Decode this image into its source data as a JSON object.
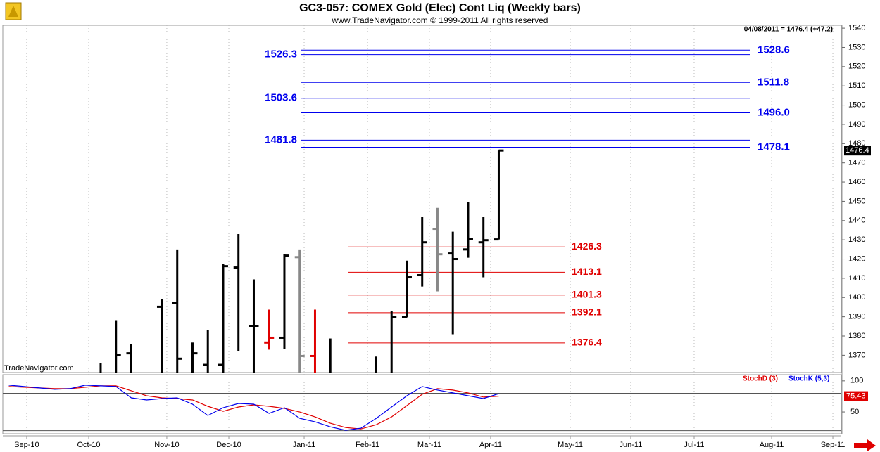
{
  "chart_data": [
    {
      "type": "ohlc",
      "title": "GC3-057:  COMEX Gold (Elec) Cont Liq  (Weekly bars)",
      "subtitle": "www.TradeNavigator.com © 1999-2011 All rights reserved",
      "annotation": "04/08/2011 = 1476.4 (+47.2)",
      "watermark": "TradeNavigator.com",
      "x": [
        0,
        1,
        2,
        4,
        5,
        6,
        7,
        8,
        9,
        10,
        11,
        12,
        13,
        14,
        15,
        18,
        19,
        20,
        21,
        22,
        23,
        24,
        25,
        26
      ],
      "open": [
        null,
        null,
        1371,
        1395.2,
        1397.3,
        null,
        1365,
        1365,
        1415.6,
        1385.3,
        1376.6,
        1379.1,
        1421,
        1369.6,
        null,
        null,
        null,
        1390,
        1411.6,
        1435.7,
        1422.9,
        1425,
        1428.7,
        1430.2
      ],
      "high": [
        1366,
        1388.2,
        1375.8,
        1399.2,
        1425,
        1376.6,
        1383,
        1417.4,
        1433,
        1409.4,
        1393.7,
        1422.5,
        1425,
        1393.7,
        1378.7,
        1369.3,
        1393,
        1419.2,
        1441.9,
        1446.6,
        1434.2,
        1449.5,
        1441.9,
        1476.4
      ],
      "low": [
        null,
        null,
        null,
        null,
        null,
        null,
        null,
        null,
        1372.2,
        null,
        1372.9,
        1373.3,
        null,
        null,
        null,
        null,
        null,
        1389.7,
        1405.7,
        1403.2,
        1380.9,
        1420.7,
        1410.5,
        1430.2
      ],
      "close": [
        null,
        1370,
        null,
        null,
        1368.2,
        1371,
        null,
        1416.3,
        null,
        1385.3,
        1379.1,
        1421.8,
        1369.6,
        null,
        null,
        null,
        1389.7,
        1410.5,
        1428.7,
        1422.5,
        1420,
        1430.6,
        1429.8,
        1476.4
      ],
      "colors": [
        "#000000",
        "#000000",
        "#000000",
        "#000000",
        "#000000",
        "#000000",
        "#000000",
        "#000000",
        "#000000",
        "#000000",
        "#e00000",
        "#000000",
        "#888888",
        "#e00000",
        "#000000",
        "#000000",
        "#000000",
        "#000000",
        "#000000",
        "#888888",
        "#000000",
        "#000000",
        "#000000",
        "#000000"
      ],
      "xlim": [
        -6.39,
        48.37
      ],
      "xticks": [
        {
          "value": -4.83,
          "label": "Sep-10"
        },
        {
          "value": -0.78,
          "label": "Oct-10"
        },
        {
          "value": 4.32,
          "label": "Nov-10"
        },
        {
          "value": 8.37,
          "label": "Dec-10"
        },
        {
          "value": 13.29,
          "label": "Jan-11"
        },
        {
          "value": 17.43,
          "label": "Feb-11"
        },
        {
          "value": 21.47,
          "label": "Mar-11"
        },
        {
          "value": 25.47,
          "label": "Apr-11"
        },
        {
          "value": 30.67,
          "label": "May-11"
        },
        {
          "value": 34.62,
          "label": "Jun-11"
        },
        {
          "value": 38.76,
          "label": "Jul-11"
        },
        {
          "value": 43.82,
          "label": "Aug-11"
        },
        {
          "value": 47.82,
          "label": "Sep-11"
        }
      ],
      "ylim": [
        1361,
        1541.5
      ],
      "yticks": [
        1370,
        1380,
        1390,
        1400,
        1410,
        1420,
        1430,
        1440,
        1450,
        1460,
        1470,
        1480,
        1490,
        1500,
        1510,
        1520,
        1530,
        1540
      ],
      "resistance": {
        "color": "#0000ee",
        "levels": [
          {
            "value": 1528.6,
            "side": "right"
          },
          {
            "value": 1526.3,
            "side": "left"
          },
          {
            "value": 1511.8,
            "side": "right"
          },
          {
            "value": 1503.6,
            "side": "left"
          },
          {
            "value": {
              "value": 1496,
              "label": "1496.0"
            },
            "side": "right"
          },
          {
            "value": 1481.8,
            "side": "left"
          },
          {
            "value": 1478.1,
            "side": "right"
          }
        ]
      },
      "support": {
        "color": "#e00000",
        "levels": [
          1426.3,
          1413.1,
          1401.3,
          1392.1,
          1376.4
        ]
      }
    },
    {
      "type": "line",
      "x": [
        -6,
        -5,
        -4,
        -3,
        -2,
        -1,
        0,
        1,
        2,
        3,
        4,
        5,
        6,
        7,
        8,
        9,
        10,
        11,
        12,
        13,
        14,
        15,
        16,
        17,
        18,
        19,
        20,
        21,
        22,
        23,
        24,
        25,
        26
      ],
      "series": [
        {
          "name": "StochD (3)",
          "color": "#e00000",
          "values": [
            90.9,
            89.8,
            88.6,
            87.5,
            87.5,
            89.8,
            92.0,
            92.0,
            84.1,
            76.1,
            72.7,
            71.6,
            69.3,
            59.1,
            51.1,
            58.0,
            61.4,
            59.1,
            55.7,
            50.0,
            42.0,
            31.8,
            25.0,
            22.7,
            29.5,
            42.0,
            60.2,
            78.4,
            87.5,
            85.2,
            80.7,
            73.9,
            75.43
          ]
        },
        {
          "name": "StochK (5,3)",
          "color": "#0000ee",
          "values": [
            93.2,
            90.9,
            88.6,
            86.4,
            87.5,
            93.2,
            92.0,
            90.9,
            72.7,
            69.3,
            71.6,
            72.7,
            62.5,
            44.3,
            56.8,
            63.6,
            62.5,
            47.7,
            56.8,
            39.8,
            34.1,
            26.1,
            20.5,
            23.9,
            39.8,
            58.0,
            76.1,
            90.9,
            85.2,
            80.7,
            76.1,
            71.6,
            79.5
          ]
        }
      ],
      "ylim": [
        15,
        110
      ],
      "yticks": [
        50,
        100
      ],
      "ref_lines": [
        20,
        80
      ]
    }
  ]
}
